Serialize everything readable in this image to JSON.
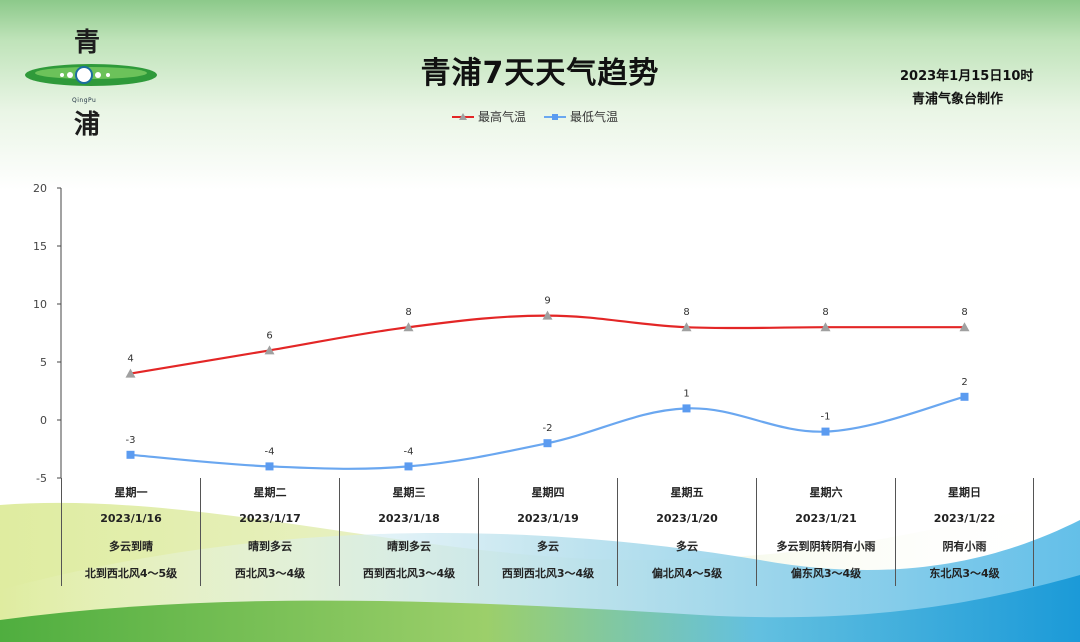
{
  "header": {
    "title": "青浦7天天气趋势",
    "issue_time": "2023年1月15日10时",
    "issuer": "青浦气象台制作"
  },
  "logo": {
    "char_top": "青",
    "char_bottom": "浦",
    "pinyin": "QingPu"
  },
  "colors": {
    "high": "#e32626",
    "low": "#6aa7f0",
    "high_marker": "#a0a0a0",
    "low_marker": "#5b9bf0"
  },
  "chart_data": {
    "type": "line",
    "ylim": [
      -5,
      20
    ],
    "yticks": [
      20,
      15,
      10,
      5,
      0,
      -5
    ],
    "categories": [
      "星期一",
      "星期二",
      "星期三",
      "星期四",
      "星期五",
      "星期六",
      "星期日"
    ],
    "series": [
      {
        "name": "最高气温",
        "values": [
          4,
          6,
          8,
          9,
          8,
          8,
          8
        ]
      },
      {
        "name": "最低气温",
        "values": [
          -3,
          -4,
          -4,
          -2,
          1,
          -1,
          2
        ]
      }
    ],
    "legend": "top-center",
    "grid": false
  },
  "days": [
    {
      "weekday": "星期一",
      "date": "2023/1/16",
      "weather": "多云到晴",
      "wind": "北到西北风4～5级"
    },
    {
      "weekday": "星期二",
      "date": "2023/1/17",
      "weather": "晴到多云",
      "wind": "西北风3～4级"
    },
    {
      "weekday": "星期三",
      "date": "2023/1/18",
      "weather": "晴到多云",
      "wind": "西到西北风3～4级"
    },
    {
      "weekday": "星期四",
      "date": "2023/1/19",
      "weather": "多云",
      "wind": "西到西北风3～4级"
    },
    {
      "weekday": "星期五",
      "date": "2023/1/20",
      "weather": "多云",
      "wind": "偏北风4～5级"
    },
    {
      "weekday": "星期六",
      "date": "2023/1/21",
      "weather": "多云到阴转阴有小雨",
      "wind": "偏东风3～4级"
    },
    {
      "weekday": "星期日",
      "date": "2023/1/22",
      "weather": "阴有小雨",
      "wind": "东北风3～4级"
    }
  ]
}
